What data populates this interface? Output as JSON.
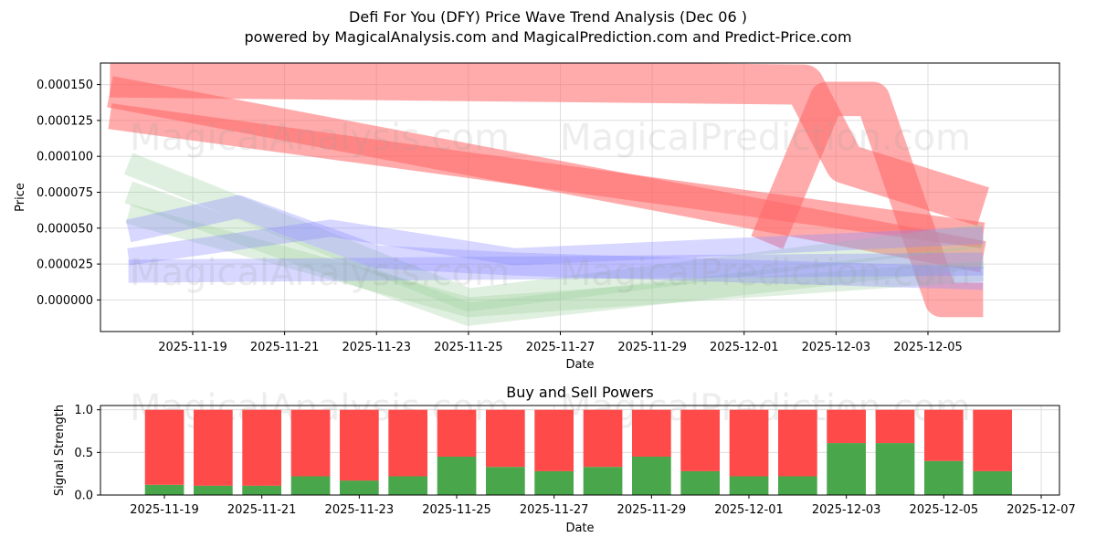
{
  "title_line1": "Defi For You (DFY) Price Wave Trend Analysis (Dec 06 )",
  "title_line2": "powered by MagicalAnalysis.com and MagicalPrediction.com and Predict-Price.com",
  "watermarks": [
    "MagicalAnalysis.com",
    "MagicalPrediction.com"
  ],
  "colors": {
    "buy": "#4aa64a",
    "sell": "#ff4a4a",
    "band_red": "#ff6666",
    "band_blue": "#8c8cff",
    "band_green": "#99cc99"
  },
  "chart_data": [
    {
      "type": "area",
      "title": "",
      "xlabel": "Date",
      "ylabel": "Price",
      "x_tick_labels": [
        "2025-11-19",
        "2025-11-21",
        "2025-11-23",
        "2025-11-25",
        "2025-11-27",
        "2025-11-29",
        "2025-12-01",
        "2025-12-03",
        "2025-12-05"
      ],
      "y_tick_labels": [
        "0.000000",
        "0.000025",
        "0.000050",
        "0.000075",
        "0.000100",
        "0.000125",
        "0.000150"
      ],
      "ylim": [
        -2.2e-05,
        0.000165
      ],
      "grid": true,
      "series": [
        {
          "name": "red-wave-1",
          "color": "red",
          "points": [
            [
              "2025-11-17.2",
              0.000155
            ],
            [
              "2025-12-02.3",
              0.00015
            ],
            [
              "2025-12-03.2",
              9.5e-05
            ],
            [
              "2025-12-06.2",
              6.5e-05
            ]
          ],
          "width": 2.8e-05
        },
        {
          "name": "red-wave-2",
          "color": "red",
          "points": [
            [
              "2025-11-17.2",
              0.000145
            ],
            [
              "2025-12-06.2",
              3e-05
            ]
          ],
          "width": 2.2e-05
        },
        {
          "name": "red-wave-3",
          "color": "red",
          "points": [
            [
              "2025-11-17.2",
              0.000128
            ],
            [
              "2025-12-06.2",
              4.5e-05
            ]
          ],
          "width": 1.8e-05
        },
        {
          "name": "red-wave-4",
          "color": "red",
          "points": [
            [
              "2025-12-01.5",
              4e-05
            ],
            [
              "2025-12-02.8",
              0.00014
            ],
            [
              "2025-12-03.8",
              0.00014
            ],
            [
              "2025-12-05.3",
              0.0
            ],
            [
              "2025-12-06.2",
              0.0
            ]
          ],
          "width": 2.4e-05
        },
        {
          "name": "green-wave-1",
          "color": "green",
          "points": [
            [
              "2025-11-17.6",
              9.5e-05
            ],
            [
              "2025-11-25",
              0.0
            ],
            [
              "2025-12-06.2",
              4.5e-05
            ]
          ],
          "width": 1.6e-05
        },
        {
          "name": "green-wave-2",
          "color": "green",
          "points": [
            [
              "2025-11-17.6",
              7.5e-05
            ],
            [
              "2025-11-25",
              -1e-05
            ],
            [
              "2025-12-06.2",
              3e-05
            ]
          ],
          "width": 1.6e-05
        },
        {
          "name": "green-wave-3",
          "color": "green",
          "points": [
            [
              "2025-11-17.6",
              6e-05
            ],
            [
              "2025-11-25",
              -5e-06
            ],
            [
              "2025-12-06.2",
              2e-05
            ]
          ],
          "width": 1.4e-05
        },
        {
          "name": "blue-wave-1",
          "color": "blue",
          "points": [
            [
              "2025-11-17.6",
              4.8e-05
            ],
            [
              "2025-11-20",
              6.5e-05
            ],
            [
              "2025-11-23",
              3e-05
            ],
            [
              "2025-11-26",
              2.5e-05
            ],
            [
              "2025-12-06.2",
              1.5e-05
            ]
          ],
          "width": 1.6e-05
        },
        {
          "name": "blue-wave-2",
          "color": "blue",
          "points": [
            [
              "2025-11-17.6",
              3e-05
            ],
            [
              "2025-11-22",
              5e-05
            ],
            [
              "2025-11-26",
              3e-05
            ],
            [
              "2025-12-06.2",
              4.5e-05
            ]
          ],
          "width": 1.2e-05
        },
        {
          "name": "blue-wave-3",
          "color": "blue",
          "points": [
            [
              "2025-11-17.6",
              2e-05
            ],
            [
              "2025-12-06.2",
              2.5e-05
            ]
          ],
          "width": 1.6e-05
        }
      ]
    },
    {
      "type": "bar",
      "title": "Buy and Sell Powers",
      "xlabel": "Date",
      "ylabel": "Signal Strength",
      "x_tick_labels": [
        "2025-11-19",
        "2025-11-21",
        "2025-11-23",
        "2025-11-25",
        "2025-11-27",
        "2025-11-29",
        "2025-12-01",
        "2025-12-03",
        "2025-12-05",
        "2025-12-07"
      ],
      "y_tick_labels": [
        "0.0",
        "0.5",
        "1.0"
      ],
      "ylim": [
        0,
        1.05
      ],
      "grid": true,
      "categories": [
        "2025-11-19",
        "2025-11-20",
        "2025-11-21",
        "2025-11-22",
        "2025-11-23",
        "2025-11-24",
        "2025-11-25",
        "2025-11-26",
        "2025-11-27",
        "2025-11-28",
        "2025-11-29",
        "2025-11-30",
        "2025-12-01",
        "2025-12-02",
        "2025-12-03",
        "2025-12-04",
        "2025-12-05",
        "2025-12-06"
      ],
      "series": [
        {
          "name": "Buy",
          "values": [
            0.12,
            0.11,
            0.11,
            0.22,
            0.17,
            0.22,
            0.45,
            0.33,
            0.28,
            0.33,
            0.45,
            0.28,
            0.22,
            0.22,
            0.61,
            0.61,
            0.4,
            0.28
          ]
        },
        {
          "name": "Sell",
          "values": [
            0.88,
            0.89,
            0.89,
            0.78,
            0.83,
            0.78,
            0.55,
            0.67,
            0.72,
            0.67,
            0.55,
            0.72,
            0.78,
            0.78,
            0.39,
            0.39,
            0.6,
            0.72
          ]
        }
      ]
    }
  ]
}
